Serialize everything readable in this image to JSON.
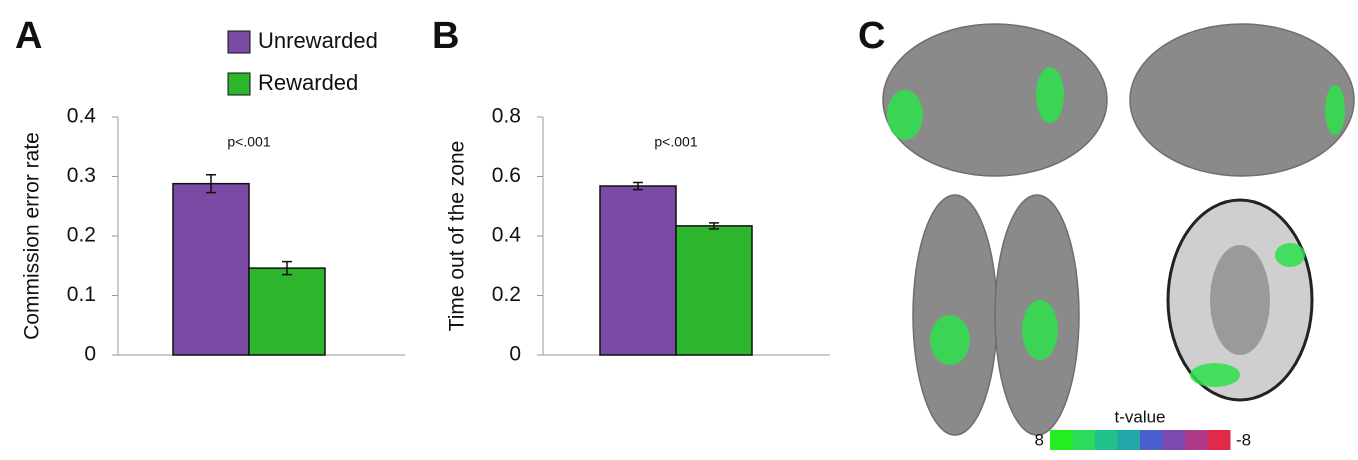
{
  "chart_data": [
    {
      "type": "bar",
      "panel_label": "A",
      "ylabel": "Commission error rate",
      "annotation": "p<.001",
      "series": [
        {
          "name": "Unrewarded",
          "color": "#7b4aa4",
          "values": [
            0.288
          ],
          "errors": [
            0.015
          ]
        },
        {
          "name": "Rewarded",
          "color": "#2db52d",
          "values": [
            0.146
          ],
          "errors": [
            0.011
          ]
        }
      ],
      "ylim": [
        0,
        0.4
      ],
      "yticks": [
        0,
        0.1,
        0.2,
        0.3,
        0.4
      ],
      "legend": "top"
    },
    {
      "type": "bar",
      "panel_label": "B",
      "ylabel": "Time out of the zone",
      "annotation": "p<.001",
      "series": [
        {
          "color": "#7b4aa4",
          "values": [
            0.568
          ],
          "errors": [
            0.012
          ]
        },
        {
          "color": "#2db52d",
          "values": [
            0.434
          ],
          "errors": [
            0.01
          ]
        }
      ],
      "ylim": [
        0,
        0.8
      ],
      "yticks": [
        0,
        0.2,
        0.4,
        0.6,
        0.8
      ]
    }
  ],
  "panel_c": {
    "panel_label": "C",
    "colorbar": {
      "title": "t-value",
      "left_label": 8,
      "right_label": -8,
      "colors": [
        "#22ee22",
        "#2ddb5a",
        "#22c08a",
        "#22a8a8",
        "#4a5fd0",
        "#7a4ab0",
        "#b03a8a",
        "#e02a4a"
      ]
    }
  }
}
